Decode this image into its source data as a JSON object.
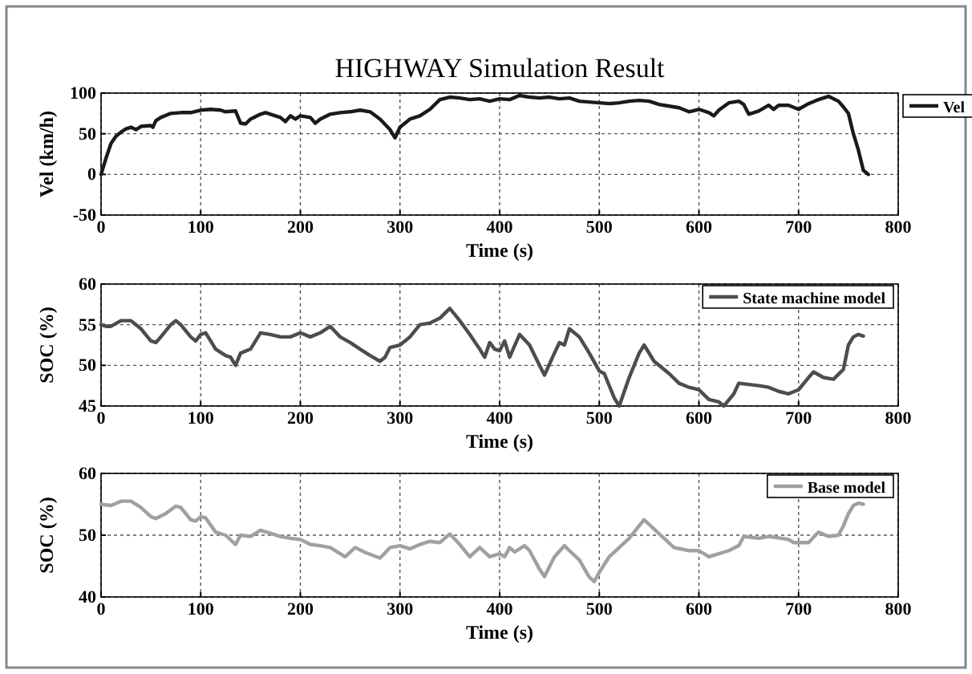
{
  "chart_data": [
    {
      "type": "line",
      "title": "HIGHWAY Simulation Result",
      "xlabel": "Time (s)",
      "ylabel": "Vel (km/h)",
      "xlim": [
        0,
        800
      ],
      "xticks": [
        0,
        100,
        200,
        300,
        400,
        500,
        600,
        700,
        800
      ],
      "ylim": [
        -50,
        100
      ],
      "yticks": [
        -50,
        0,
        50,
        100
      ],
      "grid": true,
      "legend": "right",
      "line_style": "solid",
      "series": [
        {
          "name": "Vel",
          "color": "#1a1a1a",
          "x": [
            0,
            5,
            10,
            15,
            20,
            25,
            30,
            35,
            40,
            50,
            52,
            55,
            60,
            70,
            80,
            90,
            100,
            110,
            120,
            125,
            135,
            140,
            145,
            150,
            160,
            165,
            175,
            180,
            185,
            190,
            195,
            200,
            210,
            215,
            220,
            230,
            240,
            250,
            260,
            270,
            280,
            290,
            295,
            300,
            310,
            320,
            330,
            340,
            350,
            360,
            370,
            380,
            390,
            400,
            410,
            420,
            430,
            440,
            450,
            460,
            470,
            480,
            500,
            510,
            520,
            530,
            540,
            550,
            560,
            570,
            580,
            590,
            600,
            610,
            615,
            620,
            630,
            640,
            645,
            650,
            660,
            670,
            675,
            680,
            690,
            700,
            710,
            720,
            730,
            740,
            745,
            750,
            755,
            760,
            765,
            770
          ],
          "values": [
            0,
            20,
            38,
            47,
            52,
            56,
            58,
            55,
            59,
            60,
            58,
            66,
            70,
            75,
            76,
            76,
            79,
            80,
            79,
            77,
            78,
            63,
            62,
            68,
            74,
            76,
            72,
            70,
            65,
            72,
            68,
            72,
            70,
            63,
            68,
            74,
            76,
            77,
            79,
            77,
            68,
            55,
            45,
            58,
            68,
            72,
            80,
            92,
            95,
            94,
            92,
            93,
            90,
            93,
            92,
            97,
            95,
            94,
            95,
            93,
            94,
            90,
            88,
            87,
            88,
            90,
            91,
            90,
            86,
            84,
            82,
            77,
            80,
            76,
            72,
            79,
            88,
            90,
            86,
            74,
            78,
            85,
            80,
            85,
            85,
            80,
            87,
            92,
            96,
            90,
            83,
            75,
            50,
            30,
            5,
            0
          ]
        }
      ]
    },
    {
      "type": "line",
      "xlabel": "Time (s)",
      "ylabel": "SOC (%)",
      "xlim": [
        0,
        800
      ],
      "xticks": [
        0,
        100,
        200,
        300,
        400,
        500,
        600,
        700,
        800
      ],
      "ylim": [
        45,
        60
      ],
      "yticks": [
        45,
        50,
        55,
        60
      ],
      "grid": true,
      "legend": "top right",
      "line_style": "solid",
      "series": [
        {
          "name": "State machine model",
          "color": "#4d4d4d",
          "x": [
            0,
            5,
            10,
            20,
            30,
            40,
            50,
            55,
            60,
            70,
            75,
            80,
            90,
            95,
            100,
            105,
            110,
            115,
            125,
            130,
            135,
            140,
            150,
            160,
            170,
            180,
            190,
            200,
            210,
            220,
            230,
            240,
            250,
            260,
            270,
            280,
            285,
            290,
            300,
            310,
            320,
            330,
            340,
            350,
            360,
            370,
            380,
            385,
            390,
            395,
            400,
            405,
            410,
            420,
            430,
            440,
            445,
            455,
            460,
            465,
            470,
            480,
            490,
            500,
            505,
            515,
            520,
            530,
            540,
            545,
            555,
            570,
            580,
            590,
            600,
            610,
            620,
            625,
            635,
            640,
            660,
            670,
            680,
            690,
            700,
            710,
            715,
            725,
            735,
            745,
            750,
            755,
            760,
            765
          ],
          "values": [
            55,
            54.8,
            54.8,
            55.5,
            55.5,
            54.5,
            53,
            52.8,
            53.5,
            55,
            55.5,
            55,
            53.5,
            53,
            53.8,
            54,
            53,
            52,
            51.2,
            51,
            50,
            51.5,
            52,
            54,
            53.8,
            53.5,
            53.5,
            54,
            53.5,
            54,
            54.8,
            53.5,
            52.8,
            52,
            51.2,
            50.5,
            51,
            52.2,
            52.5,
            53.5,
            55,
            55.2,
            55.8,
            57,
            55.5,
            53.8,
            52,
            51,
            52.8,
            52,
            51.8,
            53,
            51,
            53.8,
            52.5,
            50,
            48.8,
            51.5,
            52.8,
            52.5,
            54.5,
            53.5,
            51.5,
            49.3,
            49,
            46,
            45,
            48.5,
            51.5,
            52.5,
            50.5,
            49,
            47.8,
            47.3,
            47,
            45.8,
            45.5,
            45,
            46.5,
            47.8,
            47.5,
            47.3,
            46.8,
            46.5,
            47,
            48.5,
            49.2,
            48.5,
            48.3,
            49.5,
            52.5,
            53.5,
            53.8,
            53.6
          ]
        }
      ]
    },
    {
      "type": "line",
      "xlabel": "Time (s)",
      "ylabel": "SOC (%)",
      "xlim": [
        0,
        800
      ],
      "xticks": [
        0,
        100,
        200,
        300,
        400,
        500,
        600,
        700,
        800
      ],
      "ylim": [
        40,
        60
      ],
      "yticks": [
        40,
        50,
        60
      ],
      "grid": true,
      "legend": "top right",
      "line_style": "solid",
      "series": [
        {
          "name": "Base model",
          "color": "#a0a0a0",
          "x": [
            0,
            10,
            20,
            30,
            40,
            50,
            55,
            65,
            75,
            80,
            90,
            95,
            100,
            105,
            115,
            125,
            135,
            140,
            150,
            160,
            170,
            180,
            190,
            200,
            210,
            220,
            230,
            245,
            255,
            265,
            280,
            290,
            300,
            310,
            320,
            330,
            340,
            350,
            360,
            370,
            380,
            390,
            400,
            405,
            410,
            415,
            425,
            430,
            440,
            445,
            455,
            465,
            470,
            480,
            490,
            495,
            500,
            510,
            520,
            530,
            540,
            545,
            555,
            565,
            575,
            590,
            600,
            610,
            620,
            630,
            640,
            645,
            660,
            670,
            690,
            695,
            710,
            720,
            730,
            740,
            745,
            750,
            755,
            760,
            765
          ],
          "values": [
            55,
            54.8,
            55.5,
            55.5,
            54.5,
            53,
            52.7,
            53.5,
            54.7,
            54.5,
            52.5,
            52.3,
            53,
            52.8,
            50.5,
            50,
            48.5,
            50,
            49.8,
            50.8,
            50.3,
            49.8,
            49.5,
            49.3,
            48.5,
            48.3,
            48,
            46.5,
            48,
            47.2,
            46.3,
            48,
            48.3,
            47.8,
            48.5,
            49,
            48.8,
            50.2,
            48.5,
            46.5,
            48,
            46.5,
            47,
            46.5,
            48,
            47.3,
            48.3,
            47.5,
            44.5,
            43.3,
            46.5,
            48.3,
            47.5,
            46,
            43.2,
            42.5,
            44,
            46.5,
            48,
            49.5,
            51.5,
            52.5,
            51,
            49.5,
            48,
            47.5,
            47.5,
            46.5,
            47,
            47.5,
            48.3,
            49.8,
            49.5,
            49.8,
            49.3,
            48.8,
            48.8,
            50.5,
            49.8,
            50,
            51.5,
            53.5,
            54.8,
            55.2,
            55
          ]
        }
      ]
    }
  ]
}
